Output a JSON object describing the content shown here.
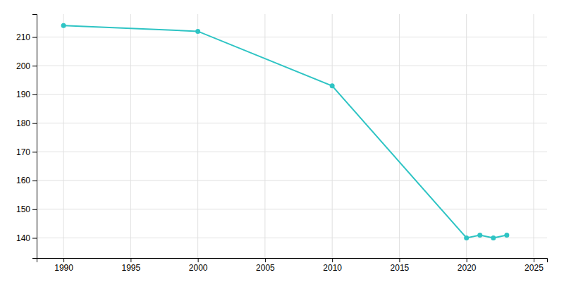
{
  "chart_data": {
    "type": "line",
    "x": [
      1990,
      2000,
      2010,
      2020,
      2021,
      2022,
      2023
    ],
    "values": [
      214,
      212,
      193,
      140,
      141,
      140,
      141
    ],
    "color": "#2EC4C4",
    "marker": "circle",
    "xlim": [
      1988,
      2026
    ],
    "ylim": [
      133,
      218
    ],
    "xticks": [
      1990,
      1995,
      2000,
      2005,
      2010,
      2015,
      2020,
      2025
    ],
    "yticks": [
      140,
      150,
      160,
      170,
      180,
      190,
      200,
      210
    ],
    "grid": true
  }
}
